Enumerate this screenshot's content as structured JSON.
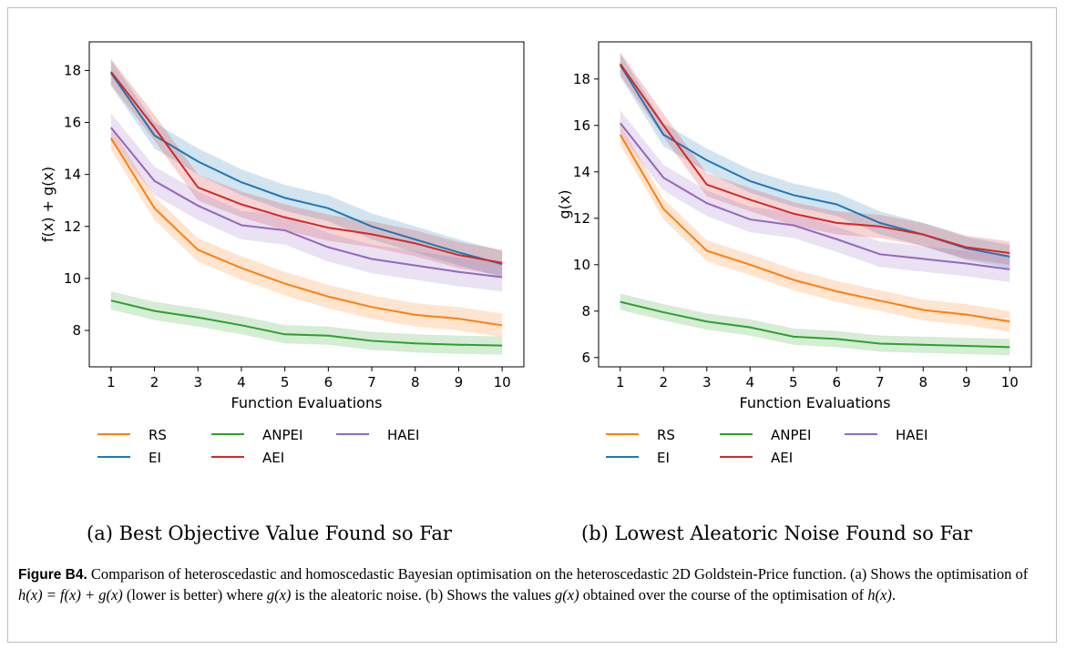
{
  "colors": {
    "RS": "#ff7f0e",
    "EI": "#1f77b4",
    "ANPEI": "#2ca02c",
    "AEI": "#d62728",
    "HAEI": "#9467bd"
  },
  "chart_data": [
    {
      "type": "line",
      "xlabel": "Function Evaluations",
      "ylabel": "f(x) + g(x)",
      "x": [
        1,
        2,
        3,
        4,
        5,
        6,
        7,
        8,
        9,
        10
      ],
      "xticks": [
        "1",
        "2",
        "3",
        "4",
        "5",
        "6",
        "7",
        "8",
        "9",
        "10"
      ],
      "yticks": [
        8,
        10,
        12,
        14,
        16,
        18
      ],
      "ylim": [
        6.6,
        19.1
      ],
      "xlim": [
        0.5,
        10.5
      ],
      "grid": false,
      "series": [
        {
          "name": "RS",
          "values": [
            15.4,
            12.7,
            11.1,
            10.4,
            9.8,
            9.3,
            8.9,
            8.6,
            8.45,
            8.2
          ],
          "band": 0.45
        },
        {
          "name": "EI",
          "values": [
            17.9,
            15.5,
            14.5,
            13.7,
            13.1,
            12.7,
            12.0,
            11.5,
            11.0,
            10.55
          ],
          "band": 0.5
        },
        {
          "name": "ANPEI",
          "values": [
            9.15,
            8.75,
            8.5,
            8.2,
            7.85,
            7.8,
            7.6,
            7.5,
            7.45,
            7.42
          ],
          "band": 0.35
        },
        {
          "name": "AEI",
          "values": [
            17.95,
            15.8,
            13.5,
            12.85,
            12.35,
            11.95,
            11.7,
            11.35,
            10.9,
            10.6
          ],
          "band": 0.5
        },
        {
          "name": "HAEI",
          "values": [
            15.8,
            13.75,
            12.8,
            12.05,
            11.85,
            11.2,
            10.75,
            10.5,
            10.25,
            10.05
          ],
          "band": 0.55
        }
      ],
      "legend": [
        "RS",
        "EI",
        "ANPEI",
        "AEI",
        "HAEI"
      ],
      "legend_position": "below"
    },
    {
      "type": "line",
      "xlabel": "Function Evaluations",
      "ylabel": "g(x)",
      "x": [
        1,
        2,
        3,
        4,
        5,
        6,
        7,
        8,
        9,
        10
      ],
      "xticks": [
        "1",
        "2",
        "3",
        "4",
        "5",
        "6",
        "7",
        "8",
        "9",
        "10"
      ],
      "yticks": [
        6,
        8,
        10,
        12,
        14,
        16,
        18
      ],
      "ylim": [
        5.6,
        19.6
      ],
      "xlim": [
        0.5,
        10.5
      ],
      "grid": false,
      "series": [
        {
          "name": "RS",
          "values": [
            15.6,
            12.4,
            10.6,
            10.0,
            9.35,
            8.85,
            8.45,
            8.05,
            7.85,
            7.55
          ],
          "band": 0.45
        },
        {
          "name": "EI",
          "values": [
            18.6,
            15.6,
            14.5,
            13.6,
            13.0,
            12.6,
            11.8,
            11.3,
            10.7,
            10.35
          ],
          "band": 0.5
        },
        {
          "name": "ANPEI",
          "values": [
            8.4,
            7.95,
            7.55,
            7.3,
            6.9,
            6.8,
            6.6,
            6.55,
            6.5,
            6.45
          ],
          "band": 0.35
        },
        {
          "name": "AEI",
          "values": [
            18.65,
            16.0,
            13.45,
            12.8,
            12.2,
            11.8,
            11.65,
            11.3,
            10.75,
            10.5
          ],
          "band": 0.5
        },
        {
          "name": "HAEI",
          "values": [
            16.1,
            13.75,
            12.65,
            11.95,
            11.7,
            11.1,
            10.45,
            10.25,
            10.05,
            9.8
          ],
          "band": 0.55
        }
      ],
      "legend": [
        "RS",
        "EI",
        "ANPEI",
        "AEI",
        "HAEI"
      ],
      "legend_position": "below"
    }
  ],
  "subcaptions": {
    "a": "(a) Best Objective Value Found so Far",
    "b": "(b) Lowest Aleatoric Noise Found so Far"
  },
  "caption": {
    "label": "Figure B4.",
    "text1": " Comparison of heteroscedastic and homoscedastic Bayesian optimisation on the heteroscedastic 2D Goldstein-Price function. (a) Shows the optimisation of ",
    "formula": "h(x) = f(x) + g(x)",
    "text2": " (lower is better) where ",
    "g": "g(x)",
    "text3": " is the aleatoric noise. (b) Shows the values ",
    "g2": "g(x)",
    "text4": " obtained over the course of the optimisation of ",
    "h": "h(x)",
    "text5": "."
  }
}
